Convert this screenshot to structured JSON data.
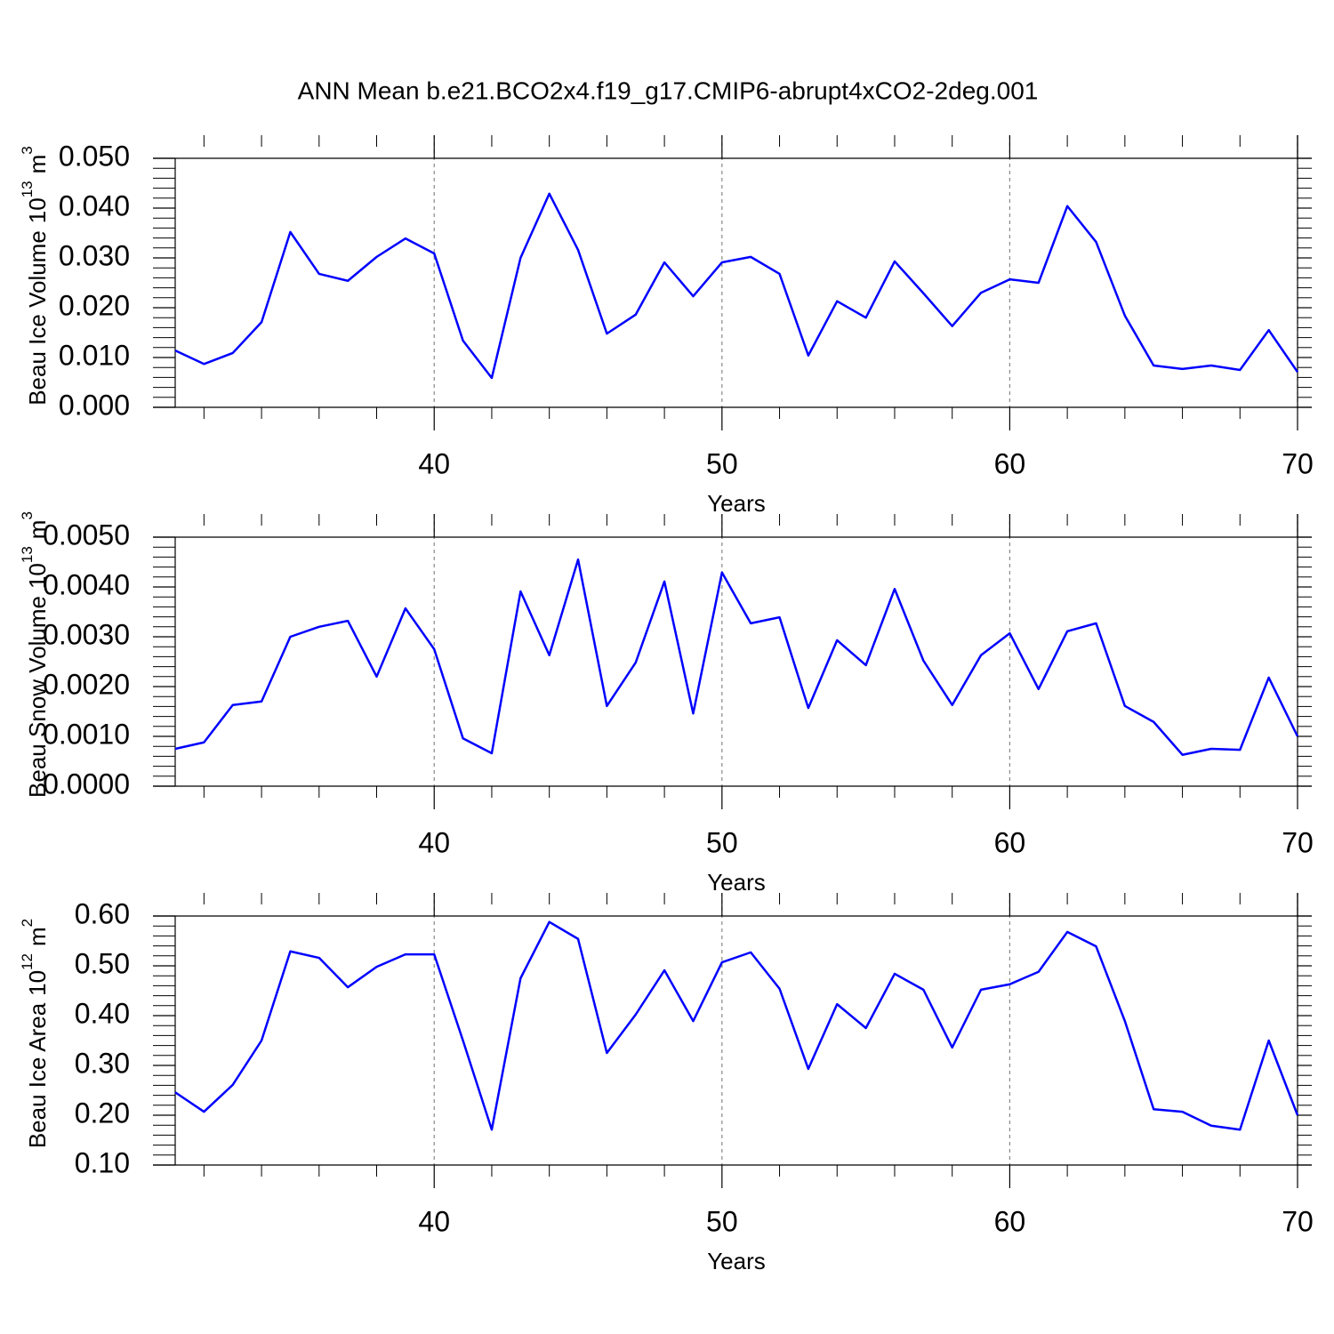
{
  "chart_data": [
    {
      "type": "line",
      "title": "ANN Mean b.e21.BCO2x4.f19_g17.CMIP6-abrupt4xCO2-2deg.001",
      "xlabel": "Years",
      "ylabel": "Beau Ice Volume",
      "ylabel_scale": "10",
      "ylabel_scale_exp": "13",
      "ylabel_unit": "m",
      "ylabel_unit_exp": "3",
      "x": [
        31,
        32,
        33,
        34,
        35,
        36,
        37,
        38,
        39,
        40,
        41,
        42,
        43,
        44,
        45,
        46,
        47,
        48,
        49,
        50,
        51,
        52,
        53,
        54,
        55,
        56,
        57,
        58,
        59,
        60,
        61,
        62,
        63,
        64,
        65,
        66,
        67,
        68,
        69,
        70
      ],
      "series": [
        {
          "color": "#0000ff",
          "values": [
            0.0114,
            0.0087,
            0.0109,
            0.0171,
            0.0352,
            0.0268,
            0.0254,
            0.0302,
            0.0339,
            0.0309,
            0.0134,
            0.0059,
            0.03,
            0.0429,
            0.0316,
            0.0148,
            0.0186,
            0.0291,
            0.0223,
            0.0291,
            0.0302,
            0.0268,
            0.0104,
            0.0213,
            0.018,
            0.0293,
            0.0229,
            0.0163,
            0.023,
            0.0257,
            0.025,
            0.0404,
            0.0332,
            0.0184,
            0.0084,
            0.0077,
            0.0084,
            0.0075,
            0.0155,
            0.0071
          ]
        }
      ],
      "xlim": [
        31,
        70
      ],
      "xticks": [
        40,
        50,
        60,
        70
      ],
      "ylim": [
        0,
        0.05
      ],
      "yticks": [
        {
          "value": 0,
          "label": "0.000"
        },
        {
          "value": 0.01,
          "label": "0.010"
        },
        {
          "value": 0.02,
          "label": "0.020"
        },
        {
          "value": 0.03,
          "label": "0.030"
        },
        {
          "value": 0.04,
          "label": "0.040"
        },
        {
          "value": 0.05,
          "label": "0.050"
        }
      ],
      "grid": true
    },
    {
      "type": "line",
      "xlabel": "Years",
      "ylabel": "Beau Snow Volume",
      "ylabel_scale": "10",
      "ylabel_scale_exp": "13",
      "ylabel_unit": "m",
      "ylabel_unit_exp": "3",
      "x": [
        31,
        32,
        33,
        34,
        35,
        36,
        37,
        38,
        39,
        40,
        41,
        42,
        43,
        44,
        45,
        46,
        47,
        48,
        49,
        50,
        51,
        52,
        53,
        54,
        55,
        56,
        57,
        58,
        59,
        60,
        61,
        62,
        63,
        64,
        65,
        66,
        67,
        68,
        69,
        70
      ],
      "series": [
        {
          "color": "#0000ff",
          "values": [
            0.00075,
            0.00088,
            0.00163,
            0.0017,
            0.003,
            0.0032,
            0.00332,
            0.0022,
            0.00357,
            0.00275,
            0.00096,
            0.00066,
            0.00391,
            0.00263,
            0.00455,
            0.00161,
            0.00248,
            0.00411,
            0.00146,
            0.00429,
            0.00327,
            0.00339,
            0.00157,
            0.00293,
            0.00243,
            0.00396,
            0.00252,
            0.00163,
            0.00263,
            0.00307,
            0.00195,
            0.00311,
            0.00327,
            0.00161,
            0.00129,
            0.00063,
            0.00075,
            0.00073,
            0.00218,
            0.001
          ]
        }
      ],
      "xlim": [
        31,
        70
      ],
      "xticks": [
        40,
        50,
        60,
        70
      ],
      "ylim": [
        0,
        0.005
      ],
      "yticks": [
        {
          "value": 0,
          "label": "0.0000"
        },
        {
          "value": 0.001,
          "label": "0.0010"
        },
        {
          "value": 0.002,
          "label": "0.0020"
        },
        {
          "value": 0.003,
          "label": "0.0030"
        },
        {
          "value": 0.004,
          "label": "0.0040"
        },
        {
          "value": 0.005,
          "label": "0.0050"
        }
      ],
      "grid": true
    },
    {
      "type": "line",
      "xlabel": "Years",
      "ylabel": "Beau Ice Area",
      "ylabel_scale": "10",
      "ylabel_scale_exp": "12",
      "ylabel_unit": "m",
      "ylabel_unit_exp": "2",
      "x": [
        31,
        32,
        33,
        34,
        35,
        36,
        37,
        38,
        39,
        40,
        41,
        42,
        43,
        44,
        45,
        46,
        47,
        48,
        49,
        50,
        51,
        52,
        53,
        54,
        55,
        56,
        57,
        58,
        59,
        60,
        61,
        62,
        63,
        64,
        65,
        66,
        67,
        68,
        69,
        70
      ],
      "series": [
        {
          "color": "#0000ff",
          "values": [
            0.246,
            0.207,
            0.261,
            0.35,
            0.529,
            0.516,
            0.457,
            0.498,
            0.523,
            0.523,
            0.35,
            0.171,
            0.475,
            0.588,
            0.554,
            0.325,
            0.402,
            0.491,
            0.389,
            0.507,
            0.527,
            0.454,
            0.293,
            0.423,
            0.375,
            0.484,
            0.452,
            0.336,
            0.452,
            0.463,
            0.488,
            0.568,
            0.539,
            0.389,
            0.212,
            0.207,
            0.179,
            0.171,
            0.35,
            0.2
          ]
        }
      ],
      "xlim": [
        31,
        70
      ],
      "xticks": [
        40,
        50,
        60,
        70
      ],
      "ylim": [
        0.1,
        0.6
      ],
      "yticks": [
        {
          "value": 0.1,
          "label": "0.10"
        },
        {
          "value": 0.2,
          "label": "0.20"
        },
        {
          "value": 0.3,
          "label": "0.30"
        },
        {
          "value": 0.4,
          "label": "0.40"
        },
        {
          "value": 0.5,
          "label": "0.50"
        },
        {
          "value": 0.6,
          "label": "0.60"
        }
      ],
      "grid": true
    }
  ]
}
